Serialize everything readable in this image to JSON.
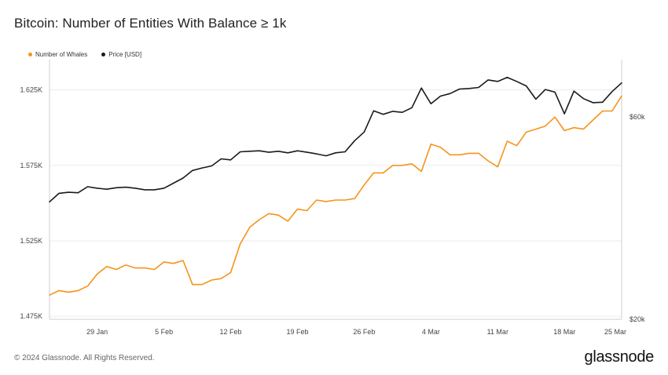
{
  "title": "Bitcoin: Number of Entities With Balance ≥ 1k",
  "footer": "© 2024 Glassnode. All Rights Reserved.",
  "logo": "glassnode",
  "chart_data": {
    "type": "line",
    "title": "Bitcoin: Number of Entities With Balance ≥ 1k",
    "legend_position": "top-left",
    "grid": true,
    "x_ticks": [
      "29 Jan",
      "5 Feb",
      "12 Feb",
      "19 Feb",
      "26 Feb",
      "4 Mar",
      "11 Mar",
      "18 Mar",
      "25 Mar"
    ],
    "x_range": [
      "23 Jan",
      "25 Mar"
    ],
    "y_left": {
      "ticks": [
        "1.475K",
        "1.525K",
        "1.575K",
        "1.625K"
      ],
      "tick_values": [
        1475,
        1525,
        1575,
        1625
      ],
      "range": [
        1473,
        1644
      ]
    },
    "y_right": {
      "ticks": [
        "$20k",
        "$60k"
      ],
      "tick_values": [
        20000,
        60000
      ],
      "range": [
        20000,
        71000
      ]
    },
    "series": [
      {
        "name": "Number of Whales",
        "axis": "left",
        "color": "#f7931a",
        "values": [
          1489,
          1492,
          1491,
          1492,
          1495,
          1503,
          1508,
          1506,
          1509,
          1507,
          1507,
          1506,
          1511,
          1510,
          1512,
          1496,
          1496,
          1499,
          1500,
          1504,
          1523,
          1534,
          1539,
          1543,
          1542,
          1538,
          1546,
          1545,
          1552,
          1551,
          1552,
          1552,
          1553,
          1562,
          1570,
          1570,
          1575,
          1575,
          1576,
          1571,
          1589,
          1587,
          1582,
          1582,
          1583,
          1583,
          1578,
          1574,
          1591,
          1588,
          1597,
          1599,
          1601,
          1607,
          1598,
          1600,
          1599,
          1605,
          1611,
          1611,
          1621
        ]
      },
      {
        "name": "Price [USD]",
        "axis": "right",
        "color": "#1a1a1a",
        "values": [
          43200,
          44900,
          45100,
          45000,
          46200,
          45900,
          45700,
          46000,
          46100,
          45900,
          45600,
          45600,
          45900,
          46900,
          47900,
          49400,
          49900,
          50300,
          51700,
          51500,
          53100,
          53200,
          53300,
          53000,
          53200,
          52900,
          53300,
          53000,
          52700,
          52300,
          52900,
          53100,
          55300,
          57000,
          61200,
          60500,
          61100,
          60900,
          61800,
          65700,
          62600,
          64100,
          64600,
          65500,
          65600,
          65800,
          67300,
          67000,
          67800,
          67000,
          66100,
          63500,
          65400,
          64900,
          60600,
          65100,
          63600,
          62800,
          62900,
          65000,
          66700
        ]
      }
    ]
  }
}
